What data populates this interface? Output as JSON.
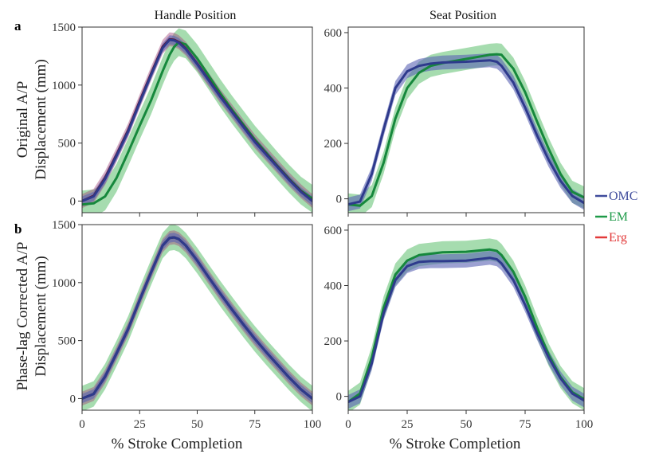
{
  "figure": {
    "columns": [
      "Handle Position",
      "Seat Position"
    ],
    "rows": [
      {
        "letter": "a",
        "ylabel_lines": [
          "Original A/P",
          "Displacement (mm)"
        ]
      },
      {
        "letter": "b",
        "ylabel_lines": [
          "Phase-lag Corrected A/P",
          "Displacement (mm)"
        ]
      }
    ],
    "xlabel": "% Stroke Completion",
    "legend": [
      {
        "name": "OMC",
        "color": "#3f4c9c"
      },
      {
        "name": "EM",
        "color": "#1e9a48"
      },
      {
        "name": "Erg",
        "color": "#e23a3a"
      }
    ]
  },
  "chart_data": [
    {
      "id": "a-handle",
      "type": "line",
      "title": "Handle Position",
      "ylabel": "Original A/P Displacement (mm)",
      "xlabel": "",
      "xlim": [
        0,
        100
      ],
      "ylim": [
        -100,
        1500
      ],
      "xticks": [
        0,
        25,
        50,
        75,
        100
      ],
      "yticks": [
        0,
        500,
        1000,
        1500
      ],
      "grid": false,
      "x": [
        0,
        5,
        10,
        15,
        20,
        25,
        30,
        35,
        38,
        40,
        42,
        45,
        50,
        55,
        60,
        65,
        70,
        75,
        80,
        85,
        90,
        95,
        100
      ],
      "series": [
        {
          "name": "OMC",
          "values": [
            0,
            40,
            190,
            390,
            600,
            850,
            1090,
            1320,
            1390,
            1385,
            1365,
            1310,
            1180,
            1040,
            900,
            770,
            640,
            510,
            400,
            290,
            180,
            80,
            0
          ],
          "band": 40
        },
        {
          "name": "EM",
          "values": [
            -30,
            -20,
            40,
            200,
            420,
            650,
            870,
            1120,
            1260,
            1330,
            1370,
            1350,
            1230,
            1080,
            930,
            790,
            660,
            530,
            415,
            300,
            190,
            90,
            20
          ],
          "band": 120
        },
        {
          "name": "Erg",
          "values": [
            0,
            45,
            200,
            400,
            610,
            860,
            1100,
            1330,
            1395,
            1390,
            1370,
            1315,
            1185,
            1045,
            905,
            775,
            645,
            515,
            405,
            295,
            185,
            85,
            0
          ],
          "band": 60
        }
      ]
    },
    {
      "id": "a-seat",
      "type": "line",
      "title": "Seat Position",
      "ylabel": "",
      "xlabel": "",
      "xlim": [
        0,
        100
      ],
      "ylim": [
        -50,
        620
      ],
      "xticks": [
        0,
        25,
        50,
        75,
        100
      ],
      "yticks": [
        0,
        200,
        400,
        600
      ],
      "grid": false,
      "x": [
        0,
        5,
        10,
        15,
        20,
        25,
        30,
        35,
        40,
        50,
        60,
        63,
        65,
        70,
        75,
        80,
        85,
        90,
        95,
        100
      ],
      "series": [
        {
          "name": "OMC",
          "values": [
            -20,
            -10,
            90,
            250,
            400,
            460,
            480,
            488,
            492,
            495,
            500,
            495,
            480,
            420,
            330,
            230,
            140,
            65,
            10,
            -15
          ],
          "band": 25
        },
        {
          "name": "EM",
          "values": [
            -20,
            -25,
            10,
            130,
            290,
            400,
            455,
            480,
            490,
            505,
            520,
            522,
            520,
            470,
            385,
            280,
            180,
            90,
            25,
            5
          ],
          "band": 40
        }
      ]
    },
    {
      "id": "b-handle",
      "type": "line",
      "title": "",
      "ylabel": "Phase-lag Corrected A/P Displacement (mm)",
      "xlabel": "% Stroke Completion",
      "xlim": [
        0,
        100
      ],
      "ylim": [
        -100,
        1500
      ],
      "xticks": [
        0,
        25,
        50,
        75,
        100
      ],
      "yticks": [
        0,
        500,
        1000,
        1500
      ],
      "grid": false,
      "x": [
        0,
        5,
        10,
        15,
        20,
        25,
        30,
        35,
        38,
        40,
        42,
        45,
        50,
        55,
        60,
        65,
        70,
        75,
        80,
        85,
        90,
        95,
        100
      ],
      "series": [
        {
          "name": "OMC",
          "values": [
            0,
            40,
            190,
            390,
            600,
            850,
            1090,
            1320,
            1385,
            1390,
            1375,
            1320,
            1190,
            1045,
            905,
            770,
            640,
            515,
            400,
            290,
            180,
            80,
            0
          ],
          "band": 40
        },
        {
          "name": "EM",
          "values": [
            0,
            40,
            190,
            390,
            600,
            850,
            1090,
            1320,
            1385,
            1390,
            1375,
            1320,
            1190,
            1045,
            905,
            770,
            640,
            515,
            400,
            290,
            180,
            80,
            0
          ],
          "band": 110
        },
        {
          "name": "Erg",
          "values": [
            0,
            40,
            190,
            390,
            600,
            850,
            1090,
            1320,
            1385,
            1390,
            1375,
            1320,
            1190,
            1045,
            905,
            770,
            640,
            515,
            400,
            290,
            180,
            80,
            0
          ],
          "band": 60
        }
      ]
    },
    {
      "id": "b-seat",
      "type": "line",
      "title": "",
      "ylabel": "",
      "xlabel": "% Stroke Completion",
      "xlim": [
        0,
        100
      ],
      "ylim": [
        -50,
        620
      ],
      "xticks": [
        0,
        25,
        50,
        75,
        100
      ],
      "yticks": [
        0,
        200,
        400,
        600
      ],
      "grid": false,
      "x": [
        0,
        5,
        10,
        15,
        20,
        25,
        30,
        35,
        40,
        50,
        60,
        63,
        65,
        70,
        75,
        80,
        85,
        90,
        95,
        100
      ],
      "series": [
        {
          "name": "OMC",
          "values": [
            -20,
            0,
            120,
            300,
            420,
            470,
            485,
            488,
            488,
            490,
            500,
            495,
            480,
            420,
            330,
            230,
            140,
            65,
            10,
            -15
          ],
          "band": 25
        },
        {
          "name": "EM",
          "values": [
            -20,
            10,
            140,
            320,
            440,
            490,
            510,
            515,
            520,
            522,
            530,
            525,
            510,
            450,
            360,
            250,
            150,
            70,
            15,
            -10
          ],
          "band": 40
        }
      ]
    }
  ]
}
